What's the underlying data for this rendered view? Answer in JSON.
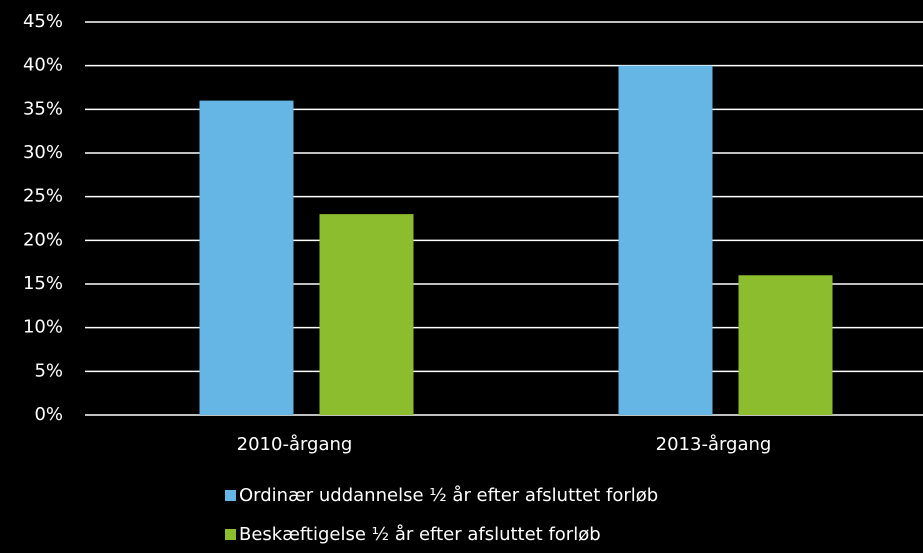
{
  "chart_data": {
    "type": "bar",
    "categories": [
      "2010-årgang",
      "2013-årgang"
    ],
    "series": [
      {
        "name": "Ordinær uddannelse ½ år efter afsluttet forløb",
        "color": "#65b5e5",
        "values": [
          36,
          40
        ]
      },
      {
        "name": "Beskæftigelse ½ år efter afsluttet forløb",
        "color": "#8cbd2e",
        "values": [
          23,
          16
        ]
      }
    ],
    "ylim": [
      0,
      45
    ],
    "yticks": [
      {
        "value": 0,
        "label": "0%"
      },
      {
        "value": 5,
        "label": "5%"
      },
      {
        "value": 10,
        "label": "10%"
      },
      {
        "value": 15,
        "label": "15%"
      },
      {
        "value": 20,
        "label": "20%"
      },
      {
        "value": 25,
        "label": "25%"
      },
      {
        "value": 30,
        "label": "30%"
      },
      {
        "value": 35,
        "label": "35%"
      },
      {
        "value": 40,
        "label": "40%"
      },
      {
        "value": 45,
        "label": "45%"
      }
    ],
    "grid": true,
    "legend": "bottom"
  }
}
